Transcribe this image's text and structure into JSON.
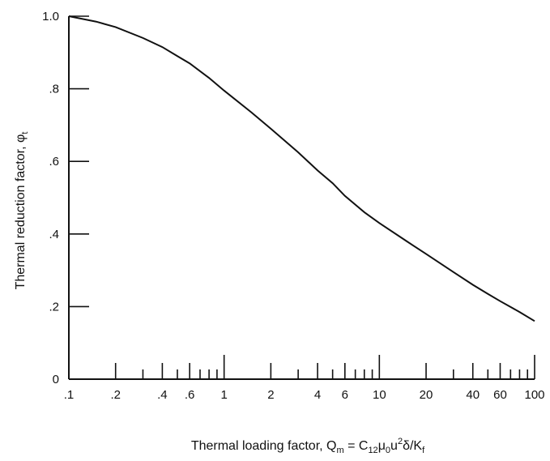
{
  "chart_data": {
    "type": "line",
    "title": "",
    "xlabel": "Thermal loading factor, Q_m = C_12 μ_0 u^2 δ/K_f",
    "xlabel_parts": {
      "prefix": "Thermal loading factor, Q",
      "sub_m": "m",
      "mid1": " = C",
      "sub_12": "12",
      "mu": "μ",
      "sub_0": "0",
      "u": "u",
      "sup_2": "2",
      "rest": "δ/K",
      "sub_f": "f"
    },
    "ylabel": "Thermal reduction factor, φ_t",
    "ylabel_parts": {
      "text": "Thermal reduction factor, φ",
      "sub": "t"
    },
    "x_scale": "log",
    "xlim": [
      0.1,
      100
    ],
    "ylim": [
      0,
      1.0
    ],
    "grid": false,
    "x_tick_labels": [
      {
        "value": 0.1,
        "label": ".1"
      },
      {
        "value": 0.2,
        "label": ".2"
      },
      {
        "value": 0.4,
        "label": ".4"
      },
      {
        "value": 0.6,
        "label": ".6"
      },
      {
        "value": 1,
        "label": "1"
      },
      {
        "value": 2,
        "label": "2"
      },
      {
        "value": 4,
        "label": "4"
      },
      {
        "value": 6,
        "label": "6"
      },
      {
        "value": 10,
        "label": "10"
      },
      {
        "value": 20,
        "label": "20"
      },
      {
        "value": 40,
        "label": "40"
      },
      {
        "value": 60,
        "label": "60"
      },
      {
        "value": 100,
        "label": "100"
      }
    ],
    "y_tick_labels": [
      {
        "value": 0,
        "label": "0"
      },
      {
        "value": 0.2,
        "label": ".2"
      },
      {
        "value": 0.4,
        "label": ".4"
      },
      {
        "value": 0.6,
        "label": ".6"
      },
      {
        "value": 0.8,
        "label": ".8"
      },
      {
        "value": 1.0,
        "label": "1.0"
      }
    ],
    "series": [
      {
        "x": [
          0.1,
          0.15,
          0.2,
          0.3,
          0.4,
          0.5,
          0.6,
          0.8,
          1,
          1.5,
          2,
          3,
          4,
          5,
          6,
          8,
          10,
          15,
          20,
          30,
          40,
          50,
          60,
          80,
          100
        ],
        "y": [
          1.0,
          0.985,
          0.97,
          0.94,
          0.915,
          0.89,
          0.87,
          0.83,
          0.795,
          0.735,
          0.69,
          0.625,
          0.575,
          0.54,
          0.505,
          0.46,
          0.43,
          0.38,
          0.345,
          0.295,
          0.26,
          0.235,
          0.215,
          0.185,
          0.16
        ]
      }
    ]
  }
}
